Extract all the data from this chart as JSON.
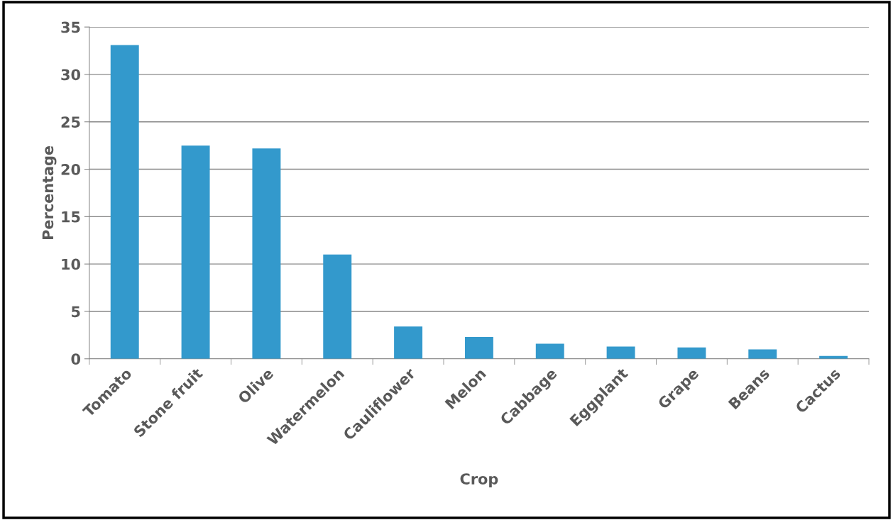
{
  "chart_data": {
    "type": "bar",
    "xlabel": "Crop",
    "ylabel": "Percentage",
    "categories": [
      "Tomato",
      "Stone fruit",
      "Olive",
      "Watermelon",
      "Cauliflower",
      "Melon",
      "Cabbage",
      "Eggplant",
      "Grape",
      "Beans",
      "Cactus"
    ],
    "values": [
      33.1,
      22.5,
      22.2,
      11.0,
      3.4,
      2.3,
      1.6,
      1.3,
      1.2,
      1.0,
      0.3
    ],
    "color": "#3399cc",
    "ylim": [
      0,
      35
    ],
    "yticks": [
      0,
      5,
      10,
      15,
      20,
      25,
      30,
      35
    ],
    "grid": "y"
  }
}
